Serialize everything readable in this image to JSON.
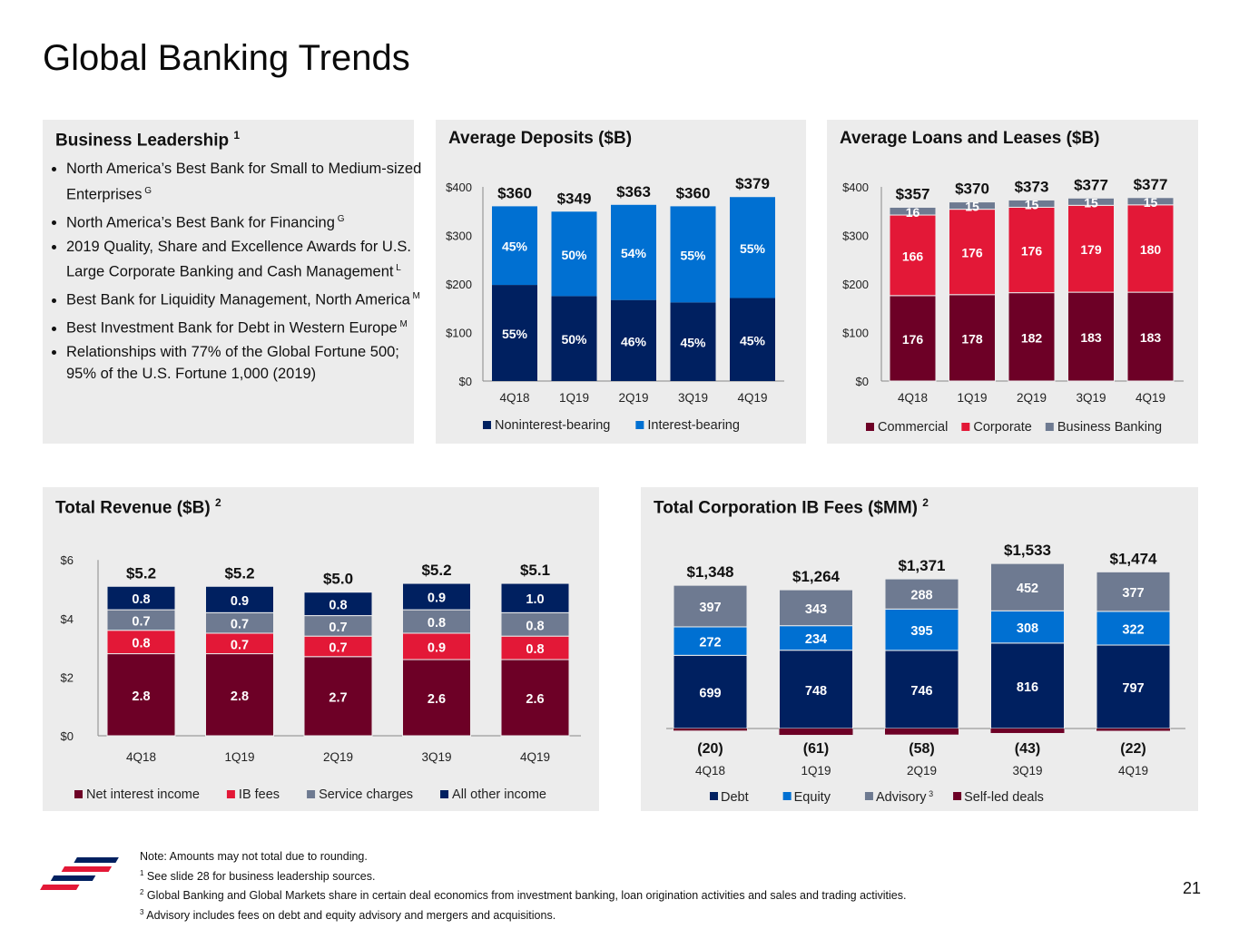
{
  "page": {
    "title": "Global Banking Trends",
    "page_number": "21",
    "footnotes": [
      {
        "mark": "",
        "text": "Note: Amounts may not total due to rounding."
      },
      {
        "mark": "1",
        "text": " See slide 28 for business leadership sources."
      },
      {
        "mark": "2",
        "text": " Global Banking and Global Markets share in certain deal economics from investment banking, loan origination activities and sales and trading activities."
      },
      {
        "mark": "3",
        "text": " Advisory includes fees on debt and equity advisory and mergers and acquisitions."
      }
    ]
  },
  "leadership": {
    "title": "Business Leadership",
    "title_sup": "1",
    "items": [
      {
        "text": "North America’s Best Bank for Small to Medium-sized Enterprises",
        "sup": "G"
      },
      {
        "text": "North America’s Best Bank for Financing",
        "sup": "G"
      },
      {
        "text": "2019 Quality, Share and Excellence Awards for U.S. Large Corporate Banking and Cash Management",
        "sup": "L"
      },
      {
        "text": "Best Bank for Liquidity Management, North America",
        "sup": "M"
      },
      {
        "text": "Best Investment Bank for Debt in Western Europe",
        "sup": "M"
      },
      {
        "text": "Relationships with 77% of the Global Fortune 500; 95% of the U.S. Fortune 1,000 (2019)",
        "sup": ""
      }
    ]
  },
  "colors": {
    "navy": "#002060",
    "blue": "#0070d2",
    "maroon": "#6d0026",
    "red": "#e31837",
    "gray": "#6e7a91",
    "panel": "#ececec"
  },
  "chart_data": [
    {
      "id": "deposits",
      "type": "bar",
      "stacked": true,
      "title": "Average Deposits ($B)",
      "categories": [
        "4Q18",
        "1Q19",
        "2Q19",
        "3Q19",
        "4Q19"
      ],
      "ylim": [
        0,
        400
      ],
      "yticks": [
        "$0",
        "$100",
        "$200",
        "$300",
        "$400"
      ],
      "totals": [
        "$360",
        "$349",
        "$363",
        "$360",
        "$379"
      ],
      "series": [
        {
          "name": "Noninterest-bearing",
          "color": "#002060",
          "values": [
            198,
            175,
            167,
            162,
            171
          ],
          "labels": [
            "55%",
            "50%",
            "46%",
            "45%",
            "45%"
          ]
        },
        {
          "name": "Interest-bearing",
          "color": "#0070d2",
          "values": [
            162,
            174,
            196,
            198,
            208
          ],
          "labels": [
            "45%",
            "50%",
            "54%",
            "55%",
            "55%"
          ]
        }
      ]
    },
    {
      "id": "loans",
      "type": "bar",
      "stacked": true,
      "title": "Average Loans and Leases ($B)",
      "categories": [
        "4Q18",
        "1Q19",
        "2Q19",
        "3Q19",
        "4Q19"
      ],
      "ylim": [
        0,
        400
      ],
      "yticks": [
        "$0",
        "$100",
        "$200",
        "$300",
        "$400"
      ],
      "totals": [
        "$357",
        "$370",
        "$373",
        "$377",
        "$377"
      ],
      "series": [
        {
          "name": "Commercial",
          "color": "#6d0026",
          "values": [
            176,
            178,
            182,
            183,
            183
          ],
          "labels": [
            "176",
            "178",
            "182",
            "183",
            "183"
          ]
        },
        {
          "name": "Corporate",
          "color": "#e31837",
          "values": [
            166,
            176,
            176,
            179,
            180
          ],
          "labels": [
            "166",
            "176",
            "176",
            "179",
            "180"
          ]
        },
        {
          "name": "Business Banking",
          "color": "#6e7a91",
          "values": [
            16,
            15,
            15,
            15,
            15
          ],
          "labels": [
            "16",
            "15",
            "15",
            "15",
            "15"
          ]
        }
      ]
    },
    {
      "id": "revenue",
      "type": "bar",
      "stacked": true,
      "title": "Total Revenue ($B)",
      "title_sup": "2",
      "categories": [
        "4Q18",
        "1Q19",
        "2Q19",
        "3Q19",
        "4Q19"
      ],
      "ylim": [
        0,
        6
      ],
      "yticks": [
        "$0",
        "$2",
        "$4",
        "$6"
      ],
      "totals": [
        "$5.2",
        "$5.2",
        "$5.0",
        "$5.2",
        "$5.1"
      ],
      "series": [
        {
          "name": "Net interest income",
          "color": "#6d0026",
          "values": [
            2.8,
            2.8,
            2.7,
            2.6,
            2.6
          ],
          "labels": [
            "2.8",
            "2.8",
            "2.7",
            "2.6",
            "2.6"
          ]
        },
        {
          "name": "IB fees",
          "color": "#e31837",
          "values": [
            0.8,
            0.7,
            0.7,
            0.9,
            0.8
          ],
          "labels": [
            "0.8",
            "0.7",
            "0.7",
            "0.9",
            "0.8"
          ]
        },
        {
          "name": "Service charges",
          "color": "#6e7a91",
          "values": [
            0.7,
            0.7,
            0.7,
            0.8,
            0.8
          ],
          "labels": [
            "0.7",
            "0.7",
            "0.7",
            "0.8",
            "0.8"
          ]
        },
        {
          "name": "All other income",
          "color": "#002060",
          "values": [
            0.8,
            0.9,
            0.8,
            0.9,
            1.0
          ],
          "labels": [
            "0.8",
            "0.9",
            "0.8",
            "0.9",
            "1.0"
          ]
        }
      ]
    },
    {
      "id": "ibfees",
      "type": "bar",
      "stacked": true,
      "title": "Total Corporation IB Fees ($MM)",
      "title_sup": "2",
      "categories": [
        "4Q18",
        "1Q19",
        "2Q19",
        "3Q19",
        "4Q19"
      ],
      "totals": [
        "$1,348",
        "$1,264",
        "$1,371",
        "$1,533",
        "$1,474"
      ],
      "negative_labels": [
        "(20)",
        "(61)",
        "(58)",
        "(43)",
        "(22)"
      ],
      "series": [
        {
          "name": "Debt",
          "color": "#002060",
          "values": [
            699,
            748,
            746,
            816,
            797
          ],
          "labels": [
            "699",
            "748",
            "746",
            "816",
            "797"
          ]
        },
        {
          "name": "Equity",
          "color": "#0070d2",
          "values": [
            272,
            234,
            395,
            308,
            322
          ],
          "labels": [
            "272",
            "234",
            "395",
            "308",
            "322"
          ]
        },
        {
          "name": "Advisory",
          "legend_sup": "3",
          "color": "#6e7a91",
          "values": [
            397,
            343,
            288,
            452,
            377
          ],
          "labels": [
            "397",
            "343",
            "288",
            "452",
            "377"
          ]
        },
        {
          "name": "Self-led deals",
          "color": "#6d0026",
          "values": [
            -20,
            -61,
            -58,
            -43,
            -22
          ],
          "labels": [
            "",
            "",
            "",
            "",
            ""
          ]
        }
      ]
    }
  ]
}
